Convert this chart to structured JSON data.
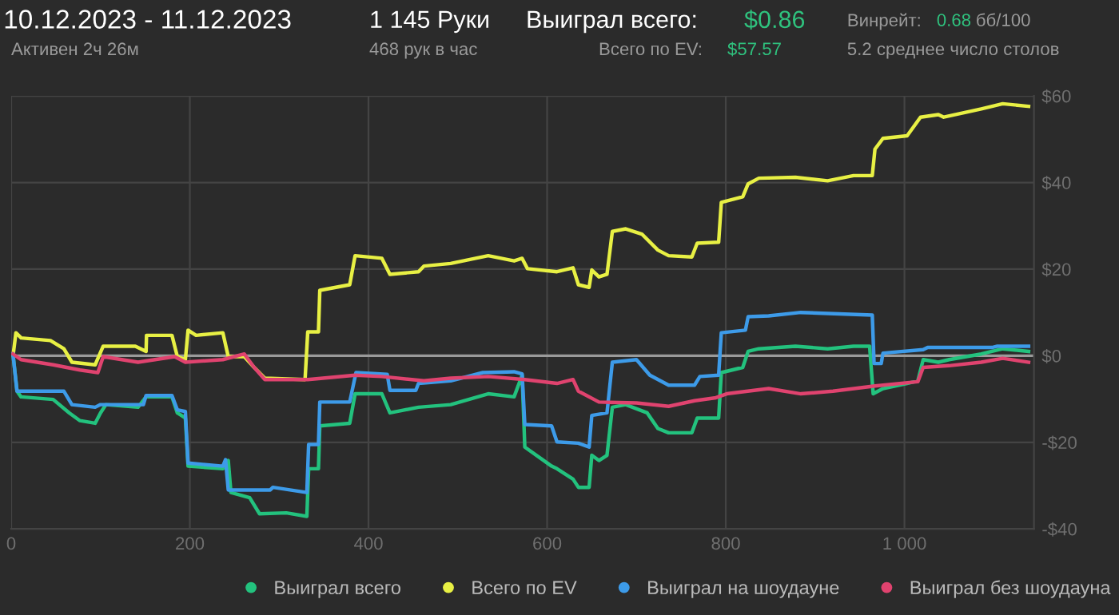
{
  "chart_data": {
    "type": "line",
    "title": "10.12.2023 - 11.12.2023",
    "annotations": [
      "Активен 2ч 26м",
      "1 145 Руки",
      "468 рук в час",
      "Выиграл всего:",
      "$0.86",
      "Всего по EV:",
      "$57.57",
      "Винрейт:",
      "0.68",
      "бб/100",
      "5.2 среднее число столов"
    ],
    "series": [
      {
        "name": "Выиграл всего",
        "color": "#23c27e",
        "x": [
          2,
          6.5,
          11,
          47,
          65,
          77,
          94,
          100,
          106,
          142,
          151,
          180,
          186,
          195,
          198,
          237,
          243,
          246,
          267,
          278,
          308,
          331,
          333,
          344,
          345.5,
          379,
          385,
          415,
          424,
          456,
          492,
          534,
          563,
          572,
          575,
          605,
          611,
          629,
          635,
          647,
          650,
          658,
          667,
          673,
          688,
          712,
          724,
          736,
          762,
          768,
          792,
          795,
          819,
          825,
          837,
          878,
          914,
          943,
          961,
          965,
          976,
          1003,
          1015,
          1021,
          1038,
          1050,
          1086,
          1110,
          1139
        ],
        "values": [
          0.4,
          -8.2,
          -9.5,
          -10.1,
          -13.2,
          -15.0,
          -15.6,
          -13.2,
          -11.3,
          -11.9,
          -9.5,
          -9.5,
          -13.2,
          -14.4,
          -25.5,
          -26.1,
          -24.2,
          -31.6,
          -32.8,
          -36.5,
          -36.3,
          -37.1,
          -26.1,
          -26.1,
          -16.2,
          -15.6,
          -8.8,
          -8.8,
          -13.2,
          -11.9,
          -11.3,
          -8.8,
          -9.5,
          -4.5,
          -21.1,
          -25.5,
          -26.1,
          -28.5,
          -30.4,
          -30.4,
          -23.0,
          -24.2,
          -23.0,
          -11.9,
          -11.3,
          -13.2,
          -16.8,
          -17.8,
          -17.8,
          -14.4,
          -14.4,
          -3.9,
          -2.7,
          1.0,
          1.6,
          2.2,
          1.6,
          2.2,
          2.2,
          -8.8,
          -7.6,
          -6.4,
          -5.8,
          -0.9,
          -1.5,
          -0.9,
          0.4,
          1.6,
          1.0
        ]
      },
      {
        "name": "Всего по EV",
        "color": "#e8f044",
        "x": [
          2.3,
          5.3,
          11.2,
          44,
          59,
          68,
          94,
          103,
          139,
          151,
          151.5,
          180,
          186,
          195,
          198,
          207,
          237,
          243,
          261,
          272,
          284,
          329,
          332,
          344,
          345.5,
          379,
          385,
          415,
          424,
          456,
          462,
          492,
          534,
          563,
          572,
          578,
          611,
          629,
          635,
          647,
          650,
          658,
          667,
          673,
          688,
          706,
          724,
          736,
          762,
          768,
          792,
          795,
          819,
          825,
          837,
          878,
          914,
          943,
          964,
          967,
          976,
          1003,
          1018,
          1038,
          1044,
          1086,
          1110,
          1139
        ],
        "values": [
          0.4,
          5.3,
          4.1,
          3.5,
          1.6,
          -1.5,
          -2.1,
          2.2,
          2.2,
          1.0,
          4.7,
          4.7,
          -0.2,
          -0.9,
          5.9,
          4.7,
          5.3,
          -0.2,
          -0.2,
          -2.7,
          -5.2,
          -5.5,
          5.5,
          5.5,
          15.1,
          16.4,
          23.1,
          22.5,
          18.8,
          19.4,
          20.7,
          21.3,
          23.1,
          21.9,
          22.5,
          20.1,
          19.4,
          20.3,
          16.4,
          15.8,
          19.8,
          18.2,
          18.8,
          28.7,
          29.3,
          28.1,
          24.4,
          23.1,
          22.8,
          26.0,
          26.2,
          35.4,
          36.7,
          39.7,
          41.0,
          41.2,
          40.4,
          41.6,
          41.6,
          47.7,
          50.2,
          50.8,
          55.1,
          55.7,
          55.1,
          57.0,
          58.2,
          57.6
        ]
      },
      {
        "name": "Выиграл на шоудауне",
        "color": "#3d9be9",
        "x": [
          2,
          6.5,
          59,
          68,
          94,
          100,
          148,
          151,
          180,
          186,
          195,
          198,
          237,
          240,
          243,
          290,
          293,
          331,
          333,
          344,
          345.5,
          379,
          386,
          421,
          424,
          453,
          456,
          492,
          528,
          563,
          572,
          575,
          605,
          611,
          635,
          647,
          650,
          667,
          673,
          700,
          715,
          736,
          765,
          771,
          792,
          795,
          822,
          825,
          848,
          884,
          964,
          966,
          974,
          976,
          1021,
          1026,
          1098,
          1104,
          1139
        ],
        "values": [
          0.4,
          -8.2,
          -8.2,
          -11.3,
          -11.9,
          -11.3,
          -11.3,
          -9.2,
          -9.2,
          -12.5,
          -12.9,
          -24.8,
          -25.5,
          -24.0,
          -31.0,
          -31.0,
          -30.4,
          -31.6,
          -20.5,
          -20.5,
          -10.7,
          -10.7,
          -3.9,
          -4.3,
          -8.0,
          -8.0,
          -6.4,
          -5.8,
          -3.9,
          -3.7,
          -4.2,
          -15.9,
          -16.2,
          -19.9,
          -20.2,
          -21.1,
          -13.8,
          -13.2,
          -1.5,
          -0.9,
          -4.5,
          -6.8,
          -6.8,
          -4.8,
          -4.5,
          5.3,
          5.9,
          9.0,
          9.2,
          10.0,
          9.4,
          -1.8,
          -1.8,
          0.6,
          1.4,
          1.9,
          1.9,
          2.2,
          2.2
        ]
      },
      {
        "name": "Выиграл без шоудауна",
        "color": "#e0436f",
        "x": [
          2,
          11,
          47,
          77,
          97,
          103,
          142,
          183,
          195,
          237,
          261,
          272,
          284,
          332,
          385,
          415,
          462,
          492,
          534,
          575,
          611,
          629,
          635,
          658,
          700,
          736,
          765,
          789,
          801,
          848,
          884,
          920,
          967,
          1015,
          1021,
          1050,
          1086,
          1110,
          1139
        ],
        "values": [
          0.4,
          -0.9,
          -2.1,
          -3.3,
          -3.9,
          -0.2,
          -1.5,
          -0.2,
          -1.5,
          -0.9,
          0.4,
          -2.7,
          -5.5,
          -5.5,
          -4.5,
          -4.8,
          -5.8,
          -5.2,
          -4.8,
          -5.5,
          -6.4,
          -5.5,
          -8.2,
          -10.7,
          -10.9,
          -11.7,
          -10.4,
          -9.7,
          -8.8,
          -7.6,
          -8.8,
          -8.2,
          -7.0,
          -6.0,
          -2.7,
          -2.3,
          -1.5,
          -0.6,
          -1.5
        ]
      }
    ],
    "xlim": [
      0,
      1145
    ],
    "xticks": [
      0,
      200,
      400,
      600,
      800,
      {
        "value": 1000,
        "label": "1 000"
      }
    ],
    "ylim": [
      -40,
      60
    ],
    "yticks": [
      {
        "value": -40,
        "label": "-$40"
      },
      {
        "value": -20,
        "label": "-$20"
      },
      {
        "value": 0,
        "label": "$0"
      },
      {
        "value": 20,
        "label": "$20"
      },
      {
        "value": 40,
        "label": "$40"
      },
      {
        "value": 60,
        "label": "$60"
      }
    ],
    "ref_lines": [
      {
        "axis": "y",
        "value": 0,
        "color": "#9a9a9a"
      }
    ],
    "grid": true,
    "legend": "bottom",
    "marker": "none",
    "line_style": "solid"
  }
}
